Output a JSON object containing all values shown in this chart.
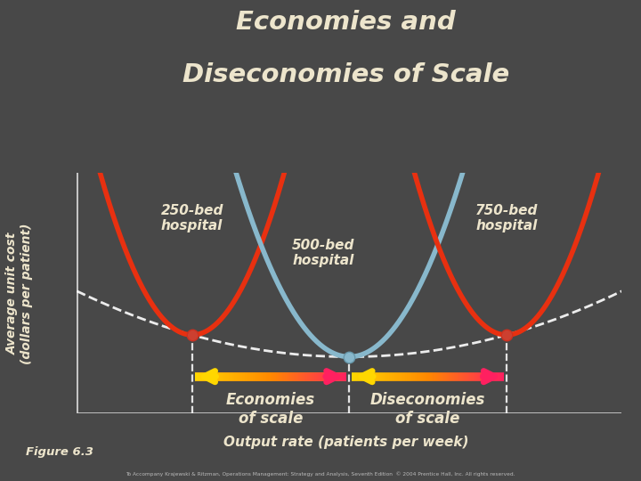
{
  "title_line1": "Economies and",
  "title_line2": "Diseconomies of Scale",
  "title_color": "#EDE5CC",
  "bg_color": "#484848",
  "plot_bg_color": "#484848",
  "ylabel": "Average unit cost\n(dollars per patient)",
  "xlabel": "Output rate (patients per week)",
  "figure_label": "Figure 6.3",
  "label_250": "250-bed\nhospital",
  "label_500": "500-bed\nhospital",
  "label_750": "750-bed\nhospital",
  "label_economies": "Economies\nof scale",
  "label_diseconomies": "Diseconomies\nof scale",
  "text_color": "#EDE5CC",
  "axis_color": "#cccccc",
  "dashed_color": "#ffffff",
  "curve_red_color": "#e83010",
  "curve_blue_color": "#88b8cc",
  "x_250": 2.5,
  "x_500": 5.5,
  "x_750": 8.5,
  "x_min": 0.3,
  "x_max": 10.7,
  "y_min": 0.0,
  "y_max": 5.5,
  "dot_color": "#cc4030",
  "dot_blue_color": "#88b8cc",
  "copyright": "To Accompany Krajewski & Ritzman, Operations Management: Strategy and Analysis, Seventh Edition  © 2004 Prentice Hall, Inc. All rights reserved."
}
